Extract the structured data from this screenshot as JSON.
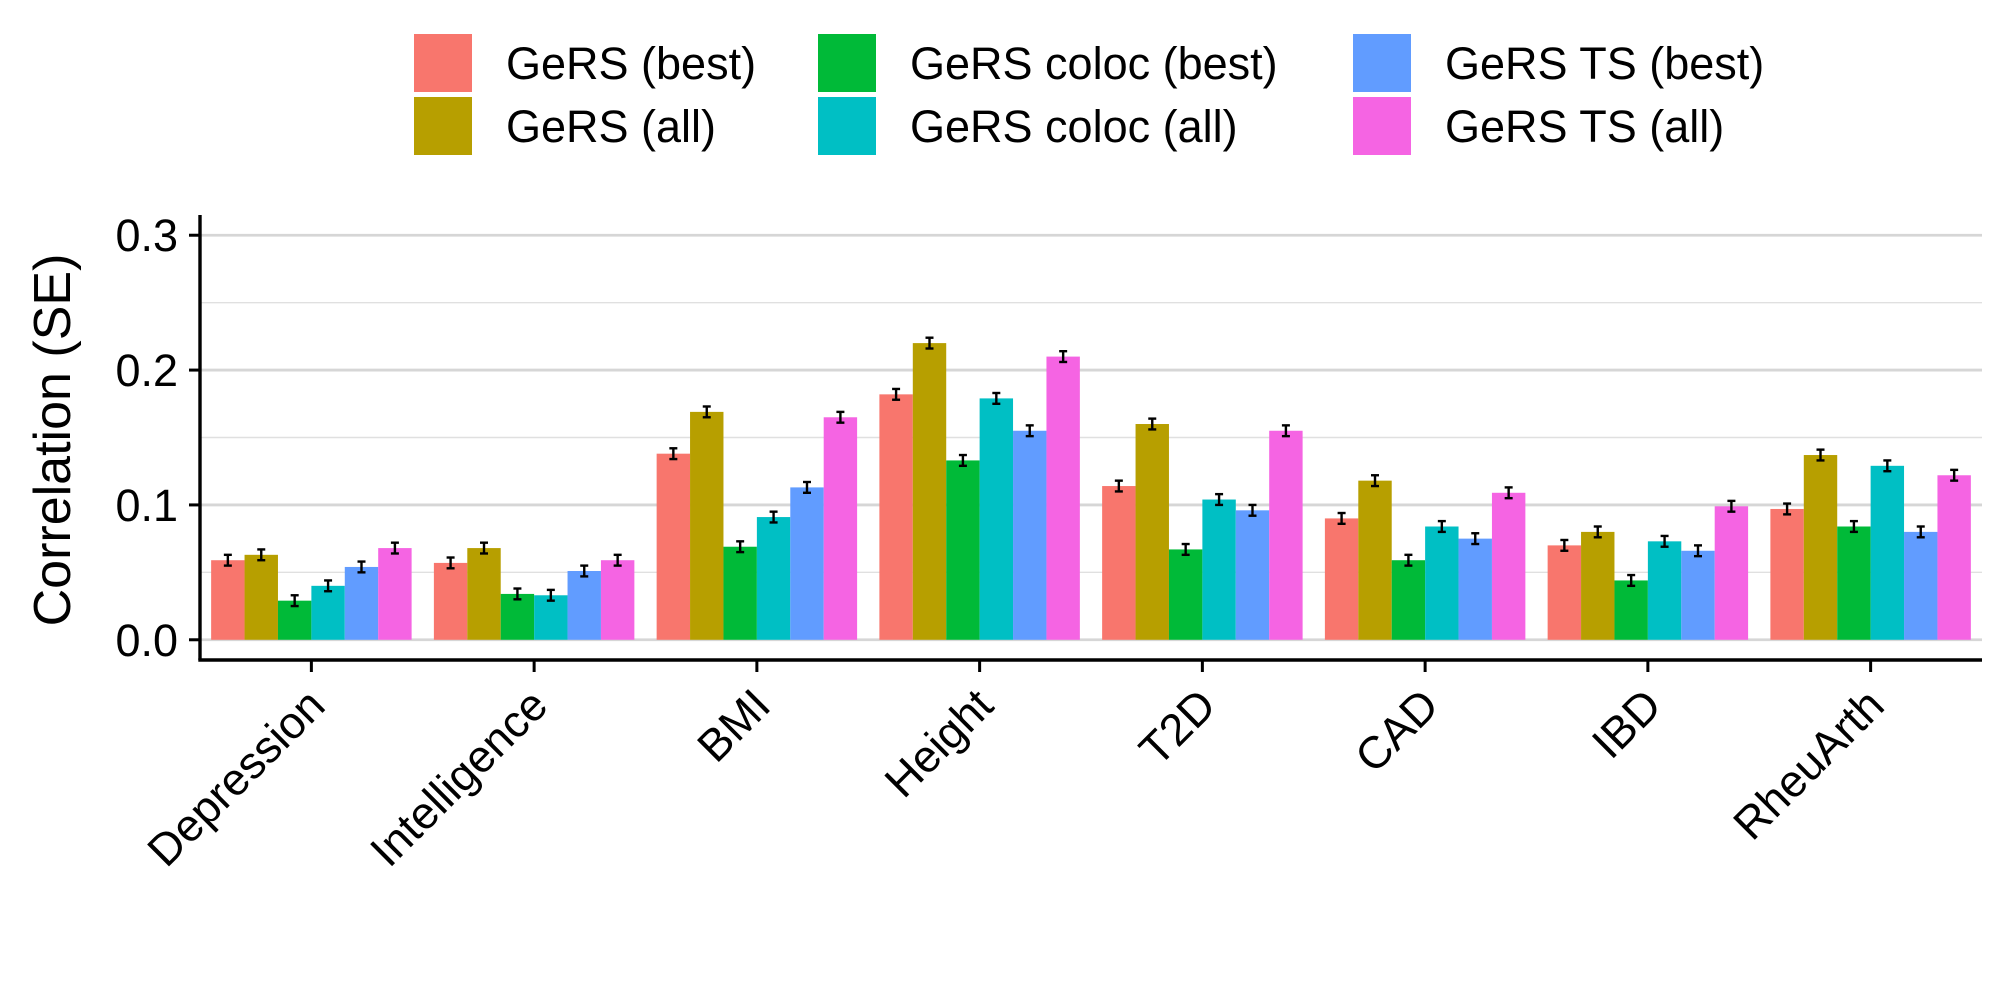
{
  "chart_data": {
    "type": "bar",
    "title": "",
    "xlabel": "",
    "ylabel": "Correlation (SE)",
    "ylim": [
      -0.015,
      0.315
    ],
    "yticks": [
      0.0,
      0.1,
      0.2,
      0.3
    ],
    "ytick_labels": [
      "0.0",
      "0.1",
      "0.2",
      "0.3"
    ],
    "grid": true,
    "legend_position": "top",
    "categories": [
      "Depression",
      "Intelligence",
      "BMI",
      "Height",
      "T2D",
      "CAD",
      "IBD",
      "RheuArth"
    ],
    "series": [
      {
        "name": "GeRS (best)",
        "color": "#F8766D",
        "values": [
          0.059,
          0.057,
          0.138,
          0.182,
          0.114,
          0.09,
          0.07,
          0.097
        ],
        "se": [
          0.004,
          0.004,
          0.004,
          0.004,
          0.004,
          0.004,
          0.004,
          0.004
        ]
      },
      {
        "name": "GeRS (all)",
        "color": "#B79F00",
        "values": [
          0.063,
          0.068,
          0.169,
          0.22,
          0.16,
          0.118,
          0.08,
          0.137
        ],
        "se": [
          0.004,
          0.004,
          0.004,
          0.004,
          0.004,
          0.004,
          0.004,
          0.004
        ]
      },
      {
        "name": "GeRS coloc (best)",
        "color": "#00BA38",
        "values": [
          0.029,
          0.034,
          0.069,
          0.133,
          0.067,
          0.059,
          0.044,
          0.084
        ],
        "se": [
          0.004,
          0.004,
          0.004,
          0.004,
          0.004,
          0.004,
          0.004,
          0.004
        ]
      },
      {
        "name": "GeRS coloc (all)",
        "color": "#00BFC4",
        "values": [
          0.04,
          0.033,
          0.091,
          0.179,
          0.104,
          0.084,
          0.073,
          0.129
        ],
        "se": [
          0.004,
          0.004,
          0.004,
          0.004,
          0.004,
          0.004,
          0.004,
          0.004
        ]
      },
      {
        "name": "GeRS TS (best)",
        "color": "#619CFF",
        "values": [
          0.054,
          0.051,
          0.113,
          0.155,
          0.096,
          0.075,
          0.066,
          0.08
        ],
        "se": [
          0.004,
          0.004,
          0.004,
          0.004,
          0.004,
          0.004,
          0.004,
          0.004
        ]
      },
      {
        "name": "GeRS TS (all)",
        "color": "#F564E3",
        "values": [
          0.068,
          0.059,
          0.165,
          0.21,
          0.155,
          0.109,
          0.099,
          0.122
        ],
        "se": [
          0.004,
          0.004,
          0.004,
          0.004,
          0.004,
          0.004,
          0.004,
          0.004
        ]
      }
    ]
  }
}
